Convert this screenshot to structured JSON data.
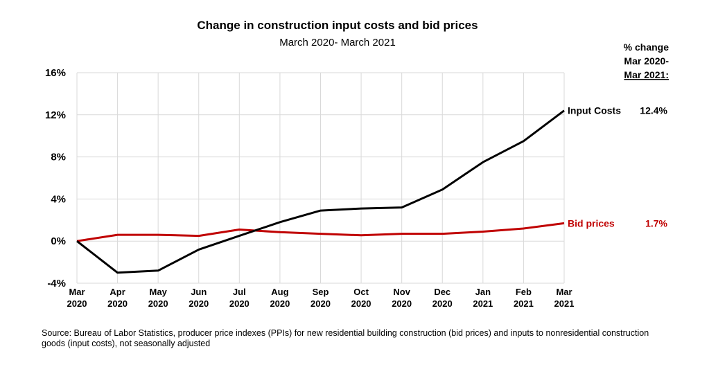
{
  "chart_data": {
    "type": "line",
    "title": "Change in construction input costs and bid prices",
    "subtitle": "March 2020- March 2021",
    "xlabel": "",
    "ylabel": "",
    "categories": [
      [
        "Mar",
        "2020"
      ],
      [
        "Apr",
        "2020"
      ],
      [
        "May",
        "2020"
      ],
      [
        "Jun",
        "2020"
      ],
      [
        "Jul",
        "2020"
      ],
      [
        "Aug",
        "2020"
      ],
      [
        "Sep",
        "2020"
      ],
      [
        "Oct",
        "2020"
      ],
      [
        "Nov",
        "2020"
      ],
      [
        "Dec",
        "2020"
      ],
      [
        "Jan",
        "2021"
      ],
      [
        "Feb",
        "2021"
      ],
      [
        "Mar",
        "2021"
      ]
    ],
    "ylim": [
      -4,
      16
    ],
    "yticks": [
      -4,
      0,
      4,
      8,
      12,
      16
    ],
    "ytick_labels": [
      "-4%",
      "0%",
      "4%",
      "8%",
      "12%",
      "16%"
    ],
    "grid": true,
    "series": [
      {
        "name": "Input Costs",
        "color": "#000000",
        "values": [
          0,
          -3.0,
          -2.8,
          -0.8,
          0.5,
          1.8,
          2.9,
          3.1,
          3.2,
          4.9,
          7.5,
          9.5,
          12.4
        ],
        "end_label": "Input Costs",
        "change_value": "12.4%"
      },
      {
        "name": "Bid prices",
        "color": "#c00000",
        "values": [
          0,
          0.6,
          0.6,
          0.5,
          1.1,
          0.85,
          0.7,
          0.55,
          0.7,
          0.7,
          0.9,
          1.2,
          1.7
        ],
        "end_label": "Bid prices",
        "change_value": "1.7%"
      }
    ],
    "change_header": [
      "% change",
      "Mar 2020-",
      "Mar 2021:"
    ]
  },
  "source_note": "Source: Bureau of Labor Statistics, producer price indexes (PPIs) for new residential building construction (bid prices) and inputs to nonresidential construction goods (input costs), not seasonally adjusted"
}
